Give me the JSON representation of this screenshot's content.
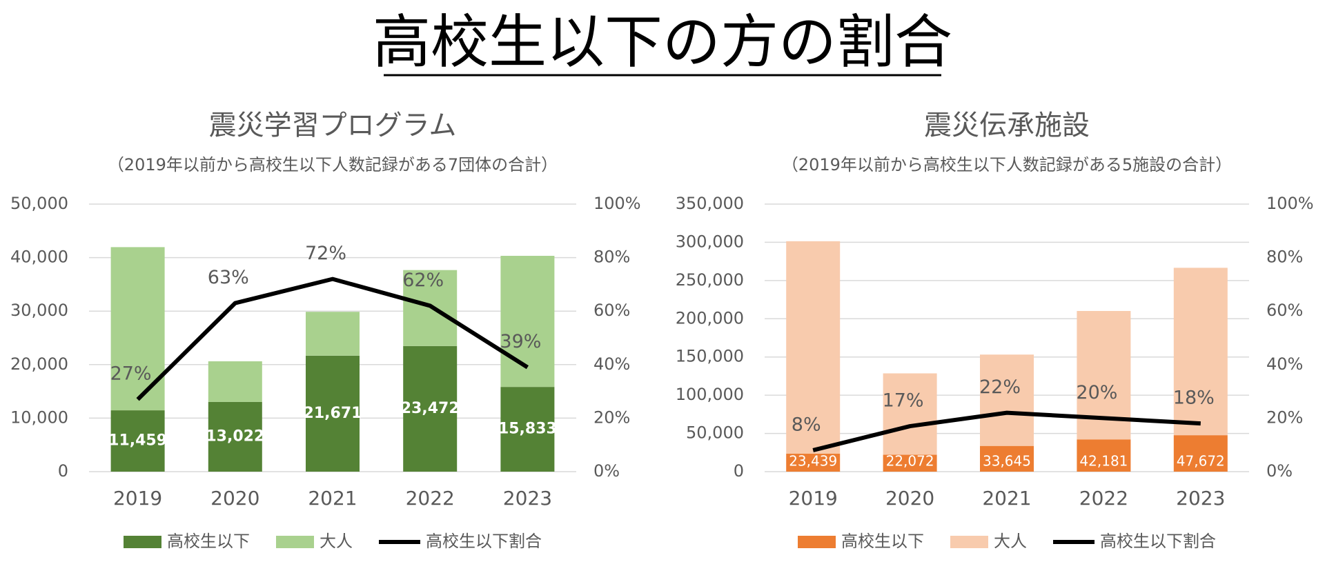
{
  "title": "高校生以下の方の割合",
  "chart_data": [
    {
      "type": "bar",
      "stacked": true,
      "title": "震災学習プログラム",
      "subtitle": "（2019年以前から高校生以下人数記録がある7団体の合計）",
      "categories": [
        "2019",
        "2020",
        "2021",
        "2022",
        "2023"
      ],
      "series": [
        {
          "name": "高校生以下",
          "color": "#548235",
          "values": [
            11459,
            13022,
            21671,
            23472,
            15833
          ],
          "value_labels": [
            "11,459",
            "13,022",
            "21,671",
            "23,472",
            "15,833"
          ]
        },
        {
          "name": "大人",
          "color": "#a9d18e",
          "values": [
            30500,
            7600,
            8200,
            14200,
            24500
          ]
        },
        {
          "name": "高校生以下割合",
          "type": "line",
          "axis": "y2",
          "color": "#000000",
          "values": [
            27,
            63,
            72,
            62,
            39
          ],
          "value_labels": [
            "27%",
            "63%",
            "72%",
            "62%",
            "39%"
          ]
        }
      ],
      "ylim": [
        0,
        50000
      ],
      "yticks": [
        0,
        {
          "value": 10000,
          "label": "10,000"
        },
        {
          "value": 20000,
          "label": "20,000"
        },
        {
          "value": 30000,
          "label": "30,000"
        },
        {
          "value": 40000,
          "label": "40,000"
        },
        {
          "value": 50000,
          "label": "50,000"
        }
      ],
      "y2lim": [
        0,
        100
      ],
      "y2ticks": [
        {
          "value": 0,
          "label": "0%"
        },
        {
          "value": 20,
          "label": "20%"
        },
        {
          "value": 40,
          "label": "40%"
        },
        {
          "value": 60,
          "label": "60%"
        },
        {
          "value": 80,
          "label": "80%"
        },
        {
          "value": 100,
          "label": "100%"
        }
      ],
      "grid": true,
      "legend": "bottom"
    },
    {
      "type": "bar",
      "stacked": true,
      "title": "震災伝承施設",
      "subtitle": "（2019年以前から高校生以下人数記録がある5施設の合計）",
      "categories": [
        "2019",
        "2020",
        "2021",
        "2022",
        "2023"
      ],
      "series": [
        {
          "name": "高校生以下",
          "color": "#ed7d31",
          "values": [
            23439,
            22072,
            33645,
            42181,
            47672
          ],
          "value_labels": [
            "23,439",
            "22,072",
            "33,645",
            "42,181",
            "47,672"
          ]
        },
        {
          "name": "大人",
          "color": "#f8cbad",
          "values": [
            278000,
            106500,
            119500,
            168000,
            219000
          ]
        },
        {
          "name": "高校生以下割合",
          "type": "line",
          "axis": "y2",
          "color": "#000000",
          "values": [
            8,
            17,
            22,
            20,
            18
          ],
          "value_labels": [
            "8%",
            "17%",
            "22%",
            "20%",
            "18%"
          ]
        }
      ],
      "ylim": [
        0,
        350000
      ],
      "yticks": [
        0,
        {
          "value": 50000,
          "label": "50,000"
        },
        {
          "value": 100000,
          "label": "100,000"
        },
        {
          "value": 150000,
          "label": "150,000"
        },
        {
          "value": 200000,
          "label": "200,000"
        },
        {
          "value": 250000,
          "label": "250,000"
        },
        {
          "value": 300000,
          "label": "300,000"
        },
        {
          "value": 350000,
          "label": "350,000"
        }
      ],
      "y2lim": [
        0,
        100
      ],
      "y2ticks": [
        {
          "value": 0,
          "label": "0%"
        },
        {
          "value": 20,
          "label": "20%"
        },
        {
          "value": 40,
          "label": "40%"
        },
        {
          "value": 60,
          "label": "60%"
        },
        {
          "value": 80,
          "label": "80%"
        },
        {
          "value": 100,
          "label": "100%"
        }
      ],
      "grid": true,
      "legend": "bottom"
    }
  ]
}
